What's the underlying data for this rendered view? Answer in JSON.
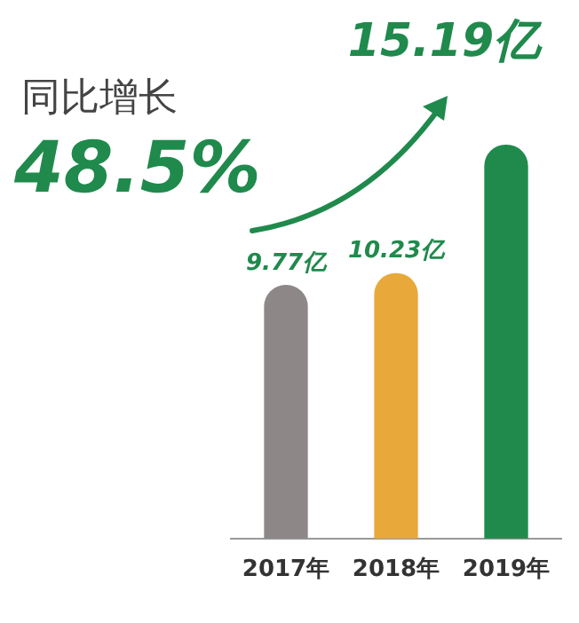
{
  "chart_data": {
    "type": "bar",
    "categories": [
      "2017年",
      "2018年",
      "2019年"
    ],
    "values": [
      9.77,
      10.23,
      15.19
    ],
    "colors": [
      "#8e8788",
      "#e8a93a",
      "#1f8a4c"
    ],
    "value_labels": [
      "9.77亿",
      "10.23亿",
      "15.19亿"
    ],
    "annotations": [
      "同比增长",
      "48.5%"
    ],
    "grid": false,
    "legend": false
  }
}
